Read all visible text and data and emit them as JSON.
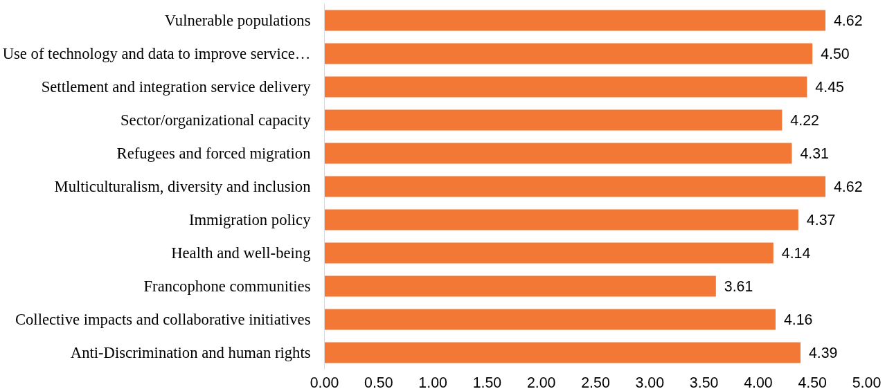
{
  "chart_data": {
    "type": "bar",
    "orientation": "horizontal",
    "categories": [
      "Vulnerable populations",
      "Use of technology and data to improve service…",
      "Settlement and integration service delivery",
      "Sector/organizational capacity",
      "Refugees and forced migration",
      "Multiculturalism, diversity and inclusion",
      "Immigration policy",
      "Health and well-being",
      "Francophone communities",
      "Collective impacts and collaborative initiatives",
      "Anti-Discrimination and human rights"
    ],
    "values": [
      4.62,
      4.5,
      4.45,
      4.22,
      4.31,
      4.62,
      4.37,
      4.14,
      3.61,
      4.16,
      4.39
    ],
    "color": "#f37735",
    "xlim": [
      0,
      5
    ],
    "xticks": [
      {
        "value": 0,
        "label": "0.00"
      },
      {
        "value": 0.5,
        "label": "0.50"
      },
      {
        "value": 1,
        "label": "1.00"
      },
      {
        "value": 1.5,
        "label": "1.50"
      },
      {
        "value": 2,
        "label": "2.00"
      },
      {
        "value": 2.5,
        "label": "2.50"
      },
      {
        "value": 3,
        "label": "3.00"
      },
      {
        "value": 3.5,
        "label": "3.50"
      },
      {
        "value": 4,
        "label": "4.00"
      },
      {
        "value": 4.5,
        "label": "4.50"
      },
      {
        "value": 5,
        "label": "5.00"
      }
    ],
    "value_labels": [
      "4.62",
      "4.50",
      "4.45",
      "4.22",
      "4.31",
      "4.62",
      "4.37",
      "4.14",
      "3.61",
      "4.16",
      "4.39"
    ],
    "grid": false
  }
}
